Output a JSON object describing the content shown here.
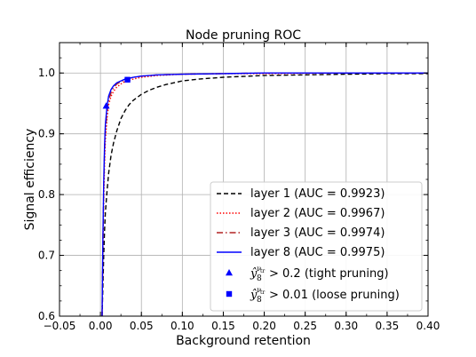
{
  "chart_data": {
    "type": "line",
    "title": "Node pruning ROC",
    "xlabel": "Background retention",
    "ylabel": "Signal efficiency",
    "xlim": [
      -0.05,
      0.4
    ],
    "ylim": [
      0.6,
      1.05
    ],
    "xticks": [
      "−0.05",
      "0.00",
      "0.05",
      "0.10",
      "0.15",
      "0.20",
      "0.25",
      "0.30",
      "0.35",
      "0.40"
    ],
    "yticks": [
      "0.6",
      "0.7",
      "0.8",
      "0.9",
      "1.0"
    ],
    "grid": true,
    "legend_position": "lower-right",
    "series": [
      {
        "name": "layer 1 (AUC = 0.9923)",
        "color": "#000000",
        "dash": "dashed",
        "x": [
          0.002,
          0.003,
          0.004,
          0.005,
          0.006,
          0.008,
          0.01,
          0.013,
          0.016,
          0.02,
          0.025,
          0.03,
          0.035,
          0.04,
          0.05,
          0.06,
          0.07,
          0.08,
          0.1,
          0.12,
          0.15,
          0.2,
          0.25,
          0.3,
          0.35,
          0.4
        ],
        "y": [
          0.6,
          0.65,
          0.7,
          0.74,
          0.77,
          0.805,
          0.835,
          0.865,
          0.885,
          0.905,
          0.925,
          0.938,
          0.948,
          0.955,
          0.965,
          0.972,
          0.977,
          0.981,
          0.987,
          0.99,
          0.993,
          0.996,
          0.997,
          0.998,
          0.999,
          0.999
        ]
      },
      {
        "name": "layer 2 (AUC = 0.9967)",
        "color": "#ff0000",
        "dash": "dotted",
        "x": [
          0.002,
          0.003,
          0.004,
          0.005,
          0.006,
          0.008,
          0.01,
          0.013,
          0.016,
          0.02,
          0.025,
          0.03,
          0.04,
          0.05,
          0.07,
          0.1,
          0.15,
          0.2,
          0.3,
          0.4
        ],
        "y": [
          0.6,
          0.7,
          0.79,
          0.85,
          0.89,
          0.925,
          0.948,
          0.962,
          0.97,
          0.977,
          0.982,
          0.986,
          0.99,
          0.993,
          0.996,
          0.998,
          0.999,
          0.999,
          1.0,
          1.0
        ]
      },
      {
        "name": "layer 3 (AUC = 0.9974)",
        "color": "#b22222",
        "dash": "dashdot",
        "x": [
          0.002,
          0.003,
          0.004,
          0.005,
          0.006,
          0.008,
          0.01,
          0.013,
          0.016,
          0.02,
          0.025,
          0.03,
          0.04,
          0.05,
          0.07,
          0.1,
          0.15,
          0.2,
          0.3,
          0.4
        ],
        "y": [
          0.6,
          0.72,
          0.81,
          0.87,
          0.905,
          0.935,
          0.955,
          0.968,
          0.976,
          0.982,
          0.986,
          0.989,
          0.993,
          0.995,
          0.997,
          0.998,
          0.999,
          1.0,
          1.0,
          1.0
        ]
      },
      {
        "name": "layer 8 (AUC = 0.9975)",
        "color": "#0000ff",
        "dash": "solid",
        "x": [
          0.002,
          0.003,
          0.004,
          0.005,
          0.006,
          0.008,
          0.01,
          0.013,
          0.016,
          0.02,
          0.025,
          0.03,
          0.04,
          0.05,
          0.07,
          0.1,
          0.15,
          0.2,
          0.3,
          0.4
        ],
        "y": [
          0.6,
          0.73,
          0.82,
          0.88,
          0.915,
          0.945,
          0.962,
          0.973,
          0.979,
          0.984,
          0.987,
          0.99,
          0.993,
          0.995,
          0.997,
          0.998,
          0.999,
          1.0,
          1.0,
          1.0
        ]
      }
    ],
    "markers": [
      {
        "name": "tight pruning",
        "shape": "triangle",
        "color": "#0000ff",
        "x": 0.007,
        "y": 0.946,
        "label_sup": "ν",
        "label_sup_sub": "tr",
        "label_sub": "8",
        "label_rest": "> 0.2 (tight pruning)"
      },
      {
        "name": "loose pruning",
        "shape": "square",
        "color": "#0000ff",
        "x": 0.033,
        "y": 0.989,
        "label_sup": "ν",
        "label_sup_sub": "tr",
        "label_sub": "8",
        "label_rest": "> 0.01 (loose pruning)"
      }
    ]
  }
}
